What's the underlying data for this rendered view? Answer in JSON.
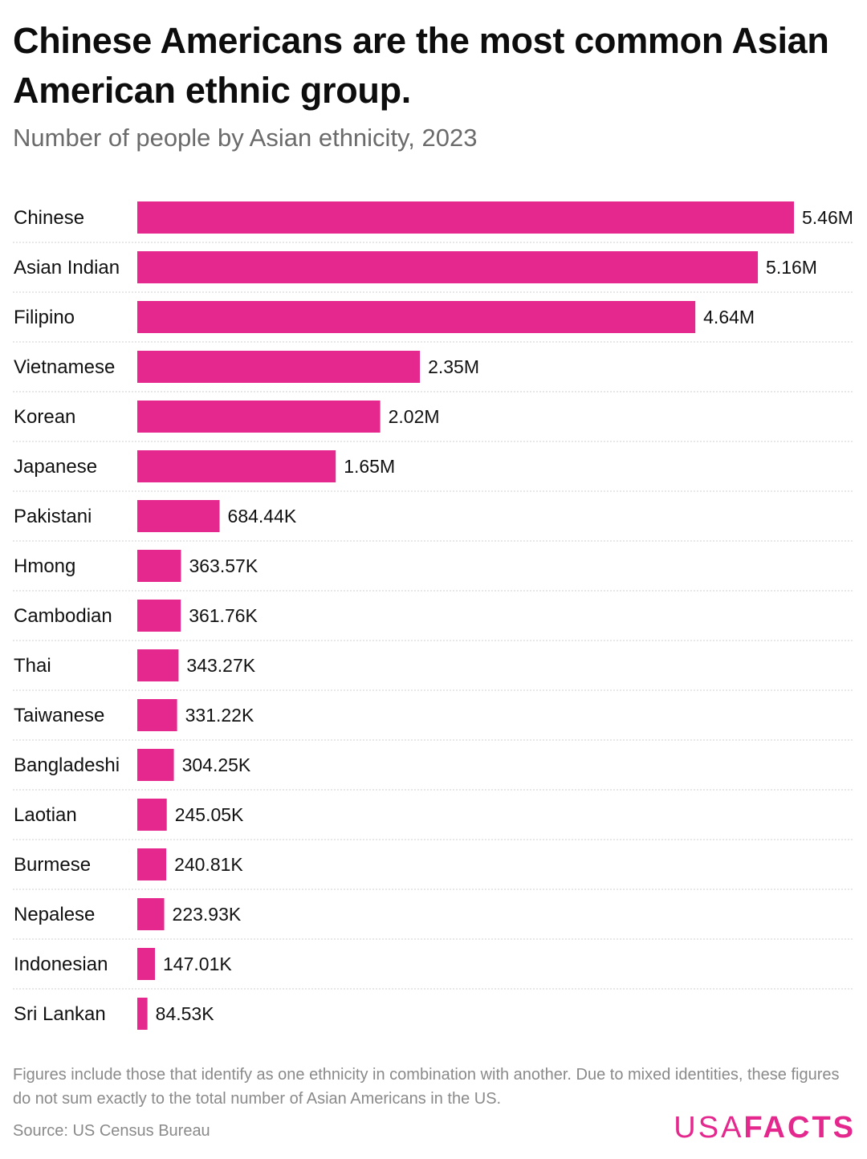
{
  "title": "Chinese Americans are the most common Asian American ethnic group.",
  "subtitle": "Number of people by Asian ethnicity, 2023",
  "footnote": "Figures include those that identify as one ethnicity in combination with another. Due to mixed identities, these figures do not sum exactly to the total number of Asian Americans in the US.",
  "source": "Source: US Census Bureau",
  "logo": {
    "light": "USA",
    "bold": "FACTS"
  },
  "colors": {
    "bar": "#e4288e",
    "grid": "#cfcfcf",
    "label": "#111111"
  },
  "chart_data": {
    "type": "bar",
    "orientation": "horizontal",
    "title": "Chinese Americans are the most common Asian American ethnic group.",
    "subtitle": "Number of people by Asian ethnicity, 2023",
    "xlabel": "",
    "ylabel": "",
    "grid": false,
    "categories": [
      "Chinese",
      "Asian Indian",
      "Filipino",
      "Vietnamese",
      "Korean",
      "Japanese",
      "Pakistani",
      "Hmong",
      "Cambodian",
      "Thai",
      "Taiwanese",
      "Bangladeshi",
      "Laotian",
      "Burmese",
      "Nepalese",
      "Indonesian",
      "Sri Lankan"
    ],
    "values": [
      5460000,
      5160000,
      4640000,
      2350000,
      2020000,
      1650000,
      684440,
      363570,
      361760,
      343270,
      331220,
      304250,
      245050,
      240810,
      223930,
      147010,
      84530
    ],
    "labels": [
      "5.46M",
      "5.16M",
      "4.64M",
      "2.35M",
      "2.02M",
      "1.65M",
      "684.44K",
      "363.57K",
      "361.76K",
      "343.27K",
      "331.22K",
      "304.25K",
      "245.05K",
      "240.81K",
      "223.93K",
      "147.01K",
      "84.53K"
    ],
    "xlim": [
      0,
      5460000
    ]
  }
}
